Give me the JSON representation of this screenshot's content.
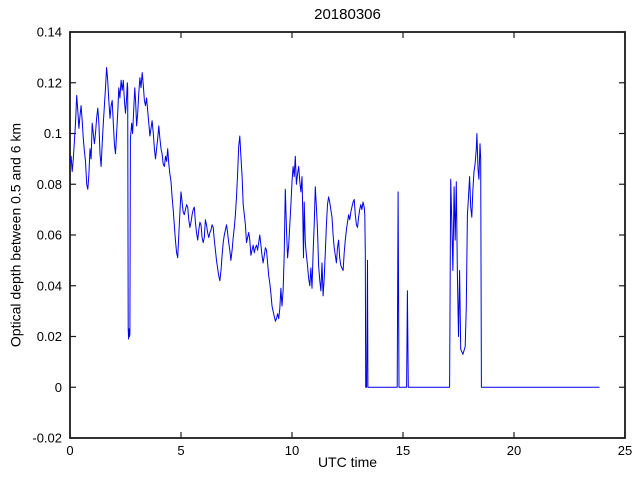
{
  "window": {
    "background": "#ffffff"
  },
  "chart_data": {
    "type": "line",
    "title": "20180306",
    "xlabel": "UTC time",
    "ylabel": "Optical depth between 0.5 and 6 km",
    "xlim": [
      0,
      25
    ],
    "ylim": [
      -0.02,
      0.14
    ],
    "xticks": [
      0,
      5,
      10,
      15,
      20,
      25
    ],
    "yticks": [
      -0.02,
      0,
      0.02,
      0.04,
      0.06,
      0.08,
      0.1,
      0.12,
      0.14
    ],
    "xtick_labels": [
      "0",
      "5",
      "10",
      "15",
      "20",
      "25"
    ],
    "ytick_labels": [
      "-0.02",
      "0",
      "0.02",
      "0.04",
      "0.06",
      "0.08",
      "0.1",
      "0.12",
      "0.14"
    ],
    "grid": false,
    "legend": "none",
    "line_color": "#0000EE",
    "axis_color": "#1c1c1c",
    "tick_direction": "in",
    "box": true,
    "series": [
      {
        "name": "optical-depth",
        "points": [
          [
            0,
            0.088
          ],
          [
            0.05,
            0.091
          ],
          [
            0.1,
            0.085
          ],
          [
            0.15,
            0.09
          ],
          [
            0.2,
            0.097
          ],
          [
            0.25,
            0.104
          ],
          [
            0.3,
            0.115
          ],
          [
            0.35,
            0.109
          ],
          [
            0.4,
            0.102
          ],
          [
            0.45,
            0.107
          ],
          [
            0.5,
            0.111
          ],
          [
            0.55,
            0.105
          ],
          [
            0.6,
            0.098
          ],
          [
            0.65,
            0.093
          ],
          [
            0.7,
            0.089
          ],
          [
            0.75,
            0.08
          ],
          [
            0.8,
            0.078
          ],
          [
            0.85,
            0.084
          ],
          [
            0.9,
            0.094
          ],
          [
            0.95,
            0.09
          ],
          [
            1,
            0.104
          ],
          [
            1.05,
            0.1
          ],
          [
            1.1,
            0.096
          ],
          [
            1.15,
            0.1
          ],
          [
            1.2,
            0.106
          ],
          [
            1.25,
            0.11
          ],
          [
            1.3,
            0.104
          ],
          [
            1.35,
            0.092
          ],
          [
            1.4,
            0.087
          ],
          [
            1.45,
            0.096
          ],
          [
            1.5,
            0.104
          ],
          [
            1.55,
            0.111
          ],
          [
            1.6,
            0.118
          ],
          [
            1.65,
            0.126
          ],
          [
            1.7,
            0.121
          ],
          [
            1.75,
            0.113
          ],
          [
            1.8,
            0.106
          ],
          [
            1.85,
            0.111
          ],
          [
            1.9,
            0.113
          ],
          [
            1.95,
            0.104
          ],
          [
            2,
            0.096
          ],
          [
            2.05,
            0.092
          ],
          [
            2.1,
            0.1
          ],
          [
            2.15,
            0.108
          ],
          [
            2.2,
            0.118
          ],
          [
            2.25,
            0.114
          ],
          [
            2.3,
            0.121
          ],
          [
            2.35,
            0.117
          ],
          [
            2.4,
            0.121
          ],
          [
            2.45,
            0.113
          ],
          [
            2.5,
            0.108
          ],
          [
            2.55,
            0.114
          ],
          [
            2.58,
            0.12
          ],
          [
            2.6,
            0.118
          ],
          [
            2.62,
            0.023
          ],
          [
            2.64,
            0.019
          ],
          [
            2.66,
            0.023
          ],
          [
            2.68,
            0.02
          ],
          [
            2.7,
            0.021
          ],
          [
            2.72,
            0.098
          ],
          [
            2.78,
            0.104
          ],
          [
            2.82,
            0.1
          ],
          [
            2.88,
            0.111
          ],
          [
            2.92,
            0.118
          ],
          [
            2.96,
            0.112
          ],
          [
            3,
            0.103
          ],
          [
            3.05,
            0.108
          ],
          [
            3.1,
            0.116
          ],
          [
            3.15,
            0.122
          ],
          [
            3.2,
            0.118
          ],
          [
            3.25,
            0.124
          ],
          [
            3.3,
            0.119
          ],
          [
            3.35,
            0.113
          ],
          [
            3.4,
            0.111
          ],
          [
            3.45,
            0.114
          ],
          [
            3.5,
            0.109
          ],
          [
            3.55,
            0.104
          ],
          [
            3.6,
            0.099
          ],
          [
            3.65,
            0.102
          ],
          [
            3.7,
            0.105
          ],
          [
            3.75,
            0.1
          ],
          [
            3.8,
            0.094
          ],
          [
            3.85,
            0.09
          ],
          [
            3.9,
            0.094
          ],
          [
            3.95,
            0.098
          ],
          [
            4,
            0.103
          ],
          [
            4.05,
            0.098
          ],
          [
            4.1,
            0.094
          ],
          [
            4.15,
            0.092
          ],
          [
            4.2,
            0.088
          ],
          [
            4.25,
            0.087
          ],
          [
            4.3,
            0.091
          ],
          [
            4.35,
            0.089
          ],
          [
            4.4,
            0.094
          ],
          [
            4.45,
            0.088
          ],
          [
            4.5,
            0.084
          ],
          [
            4.55,
            0.081
          ],
          [
            4.6,
            0.075
          ],
          [
            4.65,
            0.07
          ],
          [
            4.7,
            0.064
          ],
          [
            4.75,
            0.058
          ],
          [
            4.8,
            0.053
          ],
          [
            4.85,
            0.051
          ],
          [
            4.9,
            0.06
          ],
          [
            4.95,
            0.069
          ],
          [
            5,
            0.077
          ],
          [
            5.05,
            0.073
          ],
          [
            5.1,
            0.069
          ],
          [
            5.15,
            0.068
          ],
          [
            5.2,
            0.07
          ],
          [
            5.25,
            0.072
          ],
          [
            5.3,
            0.071
          ],
          [
            5.35,
            0.066
          ],
          [
            5.4,
            0.063
          ],
          [
            5.45,
            0.065
          ],
          [
            5.5,
            0.068
          ],
          [
            5.55,
            0.07
          ],
          [
            5.6,
            0.071
          ],
          [
            5.65,
            0.065
          ],
          [
            5.7,
            0.061
          ],
          [
            5.75,
            0.058
          ],
          [
            5.8,
            0.062
          ],
          [
            5.85,
            0.065
          ],
          [
            5.9,
            0.064
          ],
          [
            5.95,
            0.059
          ],
          [
            6,
            0.057
          ],
          [
            6.05,
            0.059
          ],
          [
            6.1,
            0.066
          ],
          [
            6.15,
            0.064
          ],
          [
            6.2,
            0.061
          ],
          [
            6.25,
            0.059
          ],
          [
            6.3,
            0.061
          ],
          [
            6.35,
            0.062
          ],
          [
            6.4,
            0.064
          ],
          [
            6.45,
            0.063
          ],
          [
            6.5,
            0.058
          ],
          [
            6.55,
            0.054
          ],
          [
            6.6,
            0.05
          ],
          [
            6.65,
            0.047
          ],
          [
            6.7,
            0.044
          ],
          [
            6.75,
            0.042
          ],
          [
            6.8,
            0.046
          ],
          [
            6.85,
            0.052
          ],
          [
            6.9,
            0.057
          ],
          [
            6.95,
            0.06
          ],
          [
            7,
            0.062
          ],
          [
            7.05,
            0.064
          ],
          [
            7.1,
            0.061
          ],
          [
            7.15,
            0.057
          ],
          [
            7.2,
            0.054
          ],
          [
            7.25,
            0.05
          ],
          [
            7.3,
            0.054
          ],
          [
            7.35,
            0.059
          ],
          [
            7.4,
            0.063
          ],
          [
            7.45,
            0.068
          ],
          [
            7.5,
            0.075
          ],
          [
            7.55,
            0.084
          ],
          [
            7.6,
            0.095
          ],
          [
            7.65,
            0.099
          ],
          [
            7.7,
            0.091
          ],
          [
            7.75,
            0.083
          ],
          [
            7.8,
            0.072
          ],
          [
            7.85,
            0.068
          ],
          [
            7.9,
            0.064
          ],
          [
            7.95,
            0.057
          ],
          [
            8,
            0.059
          ],
          [
            8.05,
            0.061
          ],
          [
            8.1,
            0.058
          ],
          [
            8.15,
            0.052
          ],
          [
            8.2,
            0.054
          ],
          [
            8.25,
            0.056
          ],
          [
            8.3,
            0.053
          ],
          [
            8.35,
            0.055
          ],
          [
            8.4,
            0.056
          ],
          [
            8.45,
            0.054
          ],
          [
            8.5,
            0.057
          ],
          [
            8.55,
            0.06
          ],
          [
            8.6,
            0.056
          ],
          [
            8.65,
            0.052
          ],
          [
            8.7,
            0.049
          ],
          [
            8.75,
            0.052
          ],
          [
            8.8,
            0.055
          ],
          [
            8.85,
            0.054
          ],
          [
            8.9,
            0.049
          ],
          [
            8.95,
            0.044
          ],
          [
            9,
            0.041
          ],
          [
            9.05,
            0.037
          ],
          [
            9.1,
            0.032
          ],
          [
            9.15,
            0.03
          ],
          [
            9.2,
            0.028
          ],
          [
            9.25,
            0.026
          ],
          [
            9.3,
            0.027
          ],
          [
            9.35,
            0.029
          ],
          [
            9.4,
            0.027
          ],
          [
            9.45,
            0.031
          ],
          [
            9.5,
            0.039
          ],
          [
            9.55,
            0.032
          ],
          [
            9.6,
            0.038
          ],
          [
            9.65,
            0.052
          ],
          [
            9.7,
            0.078
          ],
          [
            9.75,
            0.062
          ],
          [
            9.8,
            0.051
          ],
          [
            9.85,
            0.056
          ],
          [
            9.9,
            0.064
          ],
          [
            9.95,
            0.072
          ],
          [
            10,
            0.081
          ],
          [
            10.05,
            0.087
          ],
          [
            10.1,
            0.083
          ],
          [
            10.15,
            0.091
          ],
          [
            10.2,
            0.08
          ],
          [
            10.25,
            0.084
          ],
          [
            10.3,
            0.087
          ],
          [
            10.35,
            0.081
          ],
          [
            10.4,
            0.077
          ],
          [
            10.45,
            0.083
          ],
          [
            10.48,
            0.07
          ],
          [
            10.52,
            0.051
          ],
          [
            10.55,
            0.073
          ],
          [
            10.6,
            0.057
          ],
          [
            10.65,
            0.052
          ],
          [
            10.7,
            0.048
          ],
          [
            10.75,
            0.043
          ],
          [
            10.8,
            0.04
          ],
          [
            10.85,
            0.047
          ],
          [
            10.9,
            0.039
          ],
          [
            10.95,
            0.053
          ],
          [
            11,
            0.064
          ],
          [
            11.05,
            0.079
          ],
          [
            11.1,
            0.071
          ],
          [
            11.15,
            0.062
          ],
          [
            11.2,
            0.048
          ],
          [
            11.25,
            0.042
          ],
          [
            11.3,
            0.038
          ],
          [
            11.35,
            0.049
          ],
          [
            11.4,
            0.036
          ],
          [
            11.45,
            0.043
          ],
          [
            11.5,
            0.053
          ],
          [
            11.55,
            0.064
          ],
          [
            11.6,
            0.072
          ],
          [
            11.65,
            0.075
          ],
          [
            11.7,
            0.073
          ],
          [
            11.75,
            0.07
          ],
          [
            11.8,
            0.067
          ],
          [
            11.85,
            0.06
          ],
          [
            11.9,
            0.055
          ],
          [
            11.95,
            0.052
          ],
          [
            12,
            0.049
          ],
          [
            12.05,
            0.055
          ],
          [
            12.1,
            0.058
          ],
          [
            12.15,
            0.051
          ],
          [
            12.2,
            0.048
          ],
          [
            12.25,
            0.047
          ],
          [
            12.3,
            0.046
          ],
          [
            12.35,
            0.053
          ],
          [
            12.4,
            0.058
          ],
          [
            12.45,
            0.062
          ],
          [
            12.5,
            0.065
          ],
          [
            12.55,
            0.068
          ],
          [
            12.6,
            0.066
          ],
          [
            12.65,
            0.069
          ],
          [
            12.7,
            0.071
          ],
          [
            12.75,
            0.073
          ],
          [
            12.8,
            0.074
          ],
          [
            12.85,
            0.068
          ],
          [
            12.9,
            0.064
          ],
          [
            12.95,
            0.063
          ],
          [
            13,
            0.067
          ],
          [
            13.05,
            0.07
          ],
          [
            13.1,
            0.072
          ],
          [
            13.15,
            0.07
          ],
          [
            13.2,
            0.073
          ],
          [
            13.25,
            0.071
          ],
          [
            13.28,
            0.068
          ],
          [
            13.3,
            0.053
          ],
          [
            13.32,
            0
          ],
          [
            13.36,
            0
          ],
          [
            13.4,
            0.05
          ],
          [
            13.42,
            0
          ],
          [
            14.74,
            0
          ],
          [
            14.78,
            0.077
          ],
          [
            14.82,
            0
          ],
          [
            15.16,
            0
          ],
          [
            15.2,
            0.038
          ],
          [
            15.24,
            0
          ],
          [
            17.1,
            0
          ],
          [
            17.15,
            0.082
          ],
          [
            17.2,
            0.065
          ],
          [
            17.25,
            0.046
          ],
          [
            17.3,
            0.079
          ],
          [
            17.35,
            0.058
          ],
          [
            17.4,
            0.081
          ],
          [
            17.45,
            0.044
          ],
          [
            17.5,
            0.02
          ],
          [
            17.55,
            0.046
          ],
          [
            17.6,
            0.015
          ],
          [
            17.7,
            0.013
          ],
          [
            17.8,
            0.016
          ],
          [
            17.85,
            0.032
          ],
          [
            17.9,
            0.068
          ],
          [
            17.95,
            0.075
          ],
          [
            18,
            0.083
          ],
          [
            18.05,
            0.071
          ],
          [
            18.1,
            0.067
          ],
          [
            18.15,
            0.078
          ],
          [
            18.2,
            0.085
          ],
          [
            18.25,
            0.088
          ],
          [
            18.3,
            0.094
          ],
          [
            18.33,
            0.1
          ],
          [
            18.38,
            0.086
          ],
          [
            18.42,
            0.082
          ],
          [
            18.47,
            0.096
          ],
          [
            18.5,
            0.09
          ],
          [
            18.53,
            0
          ],
          [
            23.85,
            0
          ]
        ]
      }
    ]
  }
}
